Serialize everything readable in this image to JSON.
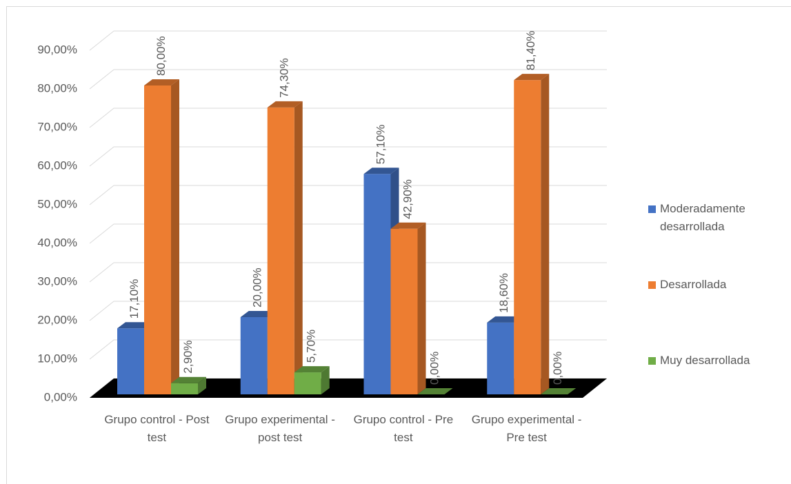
{
  "chart_data": {
    "type": "bar3d",
    "categories": [
      "Grupo control - Post test",
      "Grupo experimental - post test",
      "Grupo control - Pre test",
      "Grupo experimental - Pre test"
    ],
    "series": [
      {
        "name": "Moderadamente desarrollada",
        "color": "#4472c4",
        "values": [
          17.1,
          20,
          57.1,
          18.6
        ],
        "value_labels": [
          "17,10%",
          "20,00%",
          "57,10%",
          "18,60%"
        ]
      },
      {
        "name": "Desarrollada",
        "color": "#ed7d31",
        "values": [
          80,
          74.3,
          42.9,
          81.4
        ],
        "value_labels": [
          "80,00%",
          "74,30%",
          "42,90%",
          "81,40%"
        ]
      },
      {
        "name": "Muy desarrollada",
        "color": "#70ad47",
        "values": [
          2.9,
          5.7,
          0,
          0
        ],
        "value_labels": [
          "2,90%",
          "5,70%",
          "0,00%",
          "0,00%"
        ]
      }
    ],
    "ylim": [
      0,
      90
    ],
    "yticks": [
      {
        "value": 0,
        "label": "0,00%"
      },
      {
        "value": 10,
        "label": "10,00%"
      },
      {
        "value": 20,
        "label": "20,00%"
      },
      {
        "value": 30,
        "label": "30,00%"
      },
      {
        "value": 40,
        "label": "40,00%"
      },
      {
        "value": 50,
        "label": "50,00%"
      },
      {
        "value": 60,
        "label": "60,00%"
      },
      {
        "value": 70,
        "label": "70,00%"
      },
      {
        "value": 80,
        "label": "80,00%"
      },
      {
        "value": 90,
        "label": "90,00%"
      }
    ],
    "grid": true,
    "legend": "right"
  }
}
